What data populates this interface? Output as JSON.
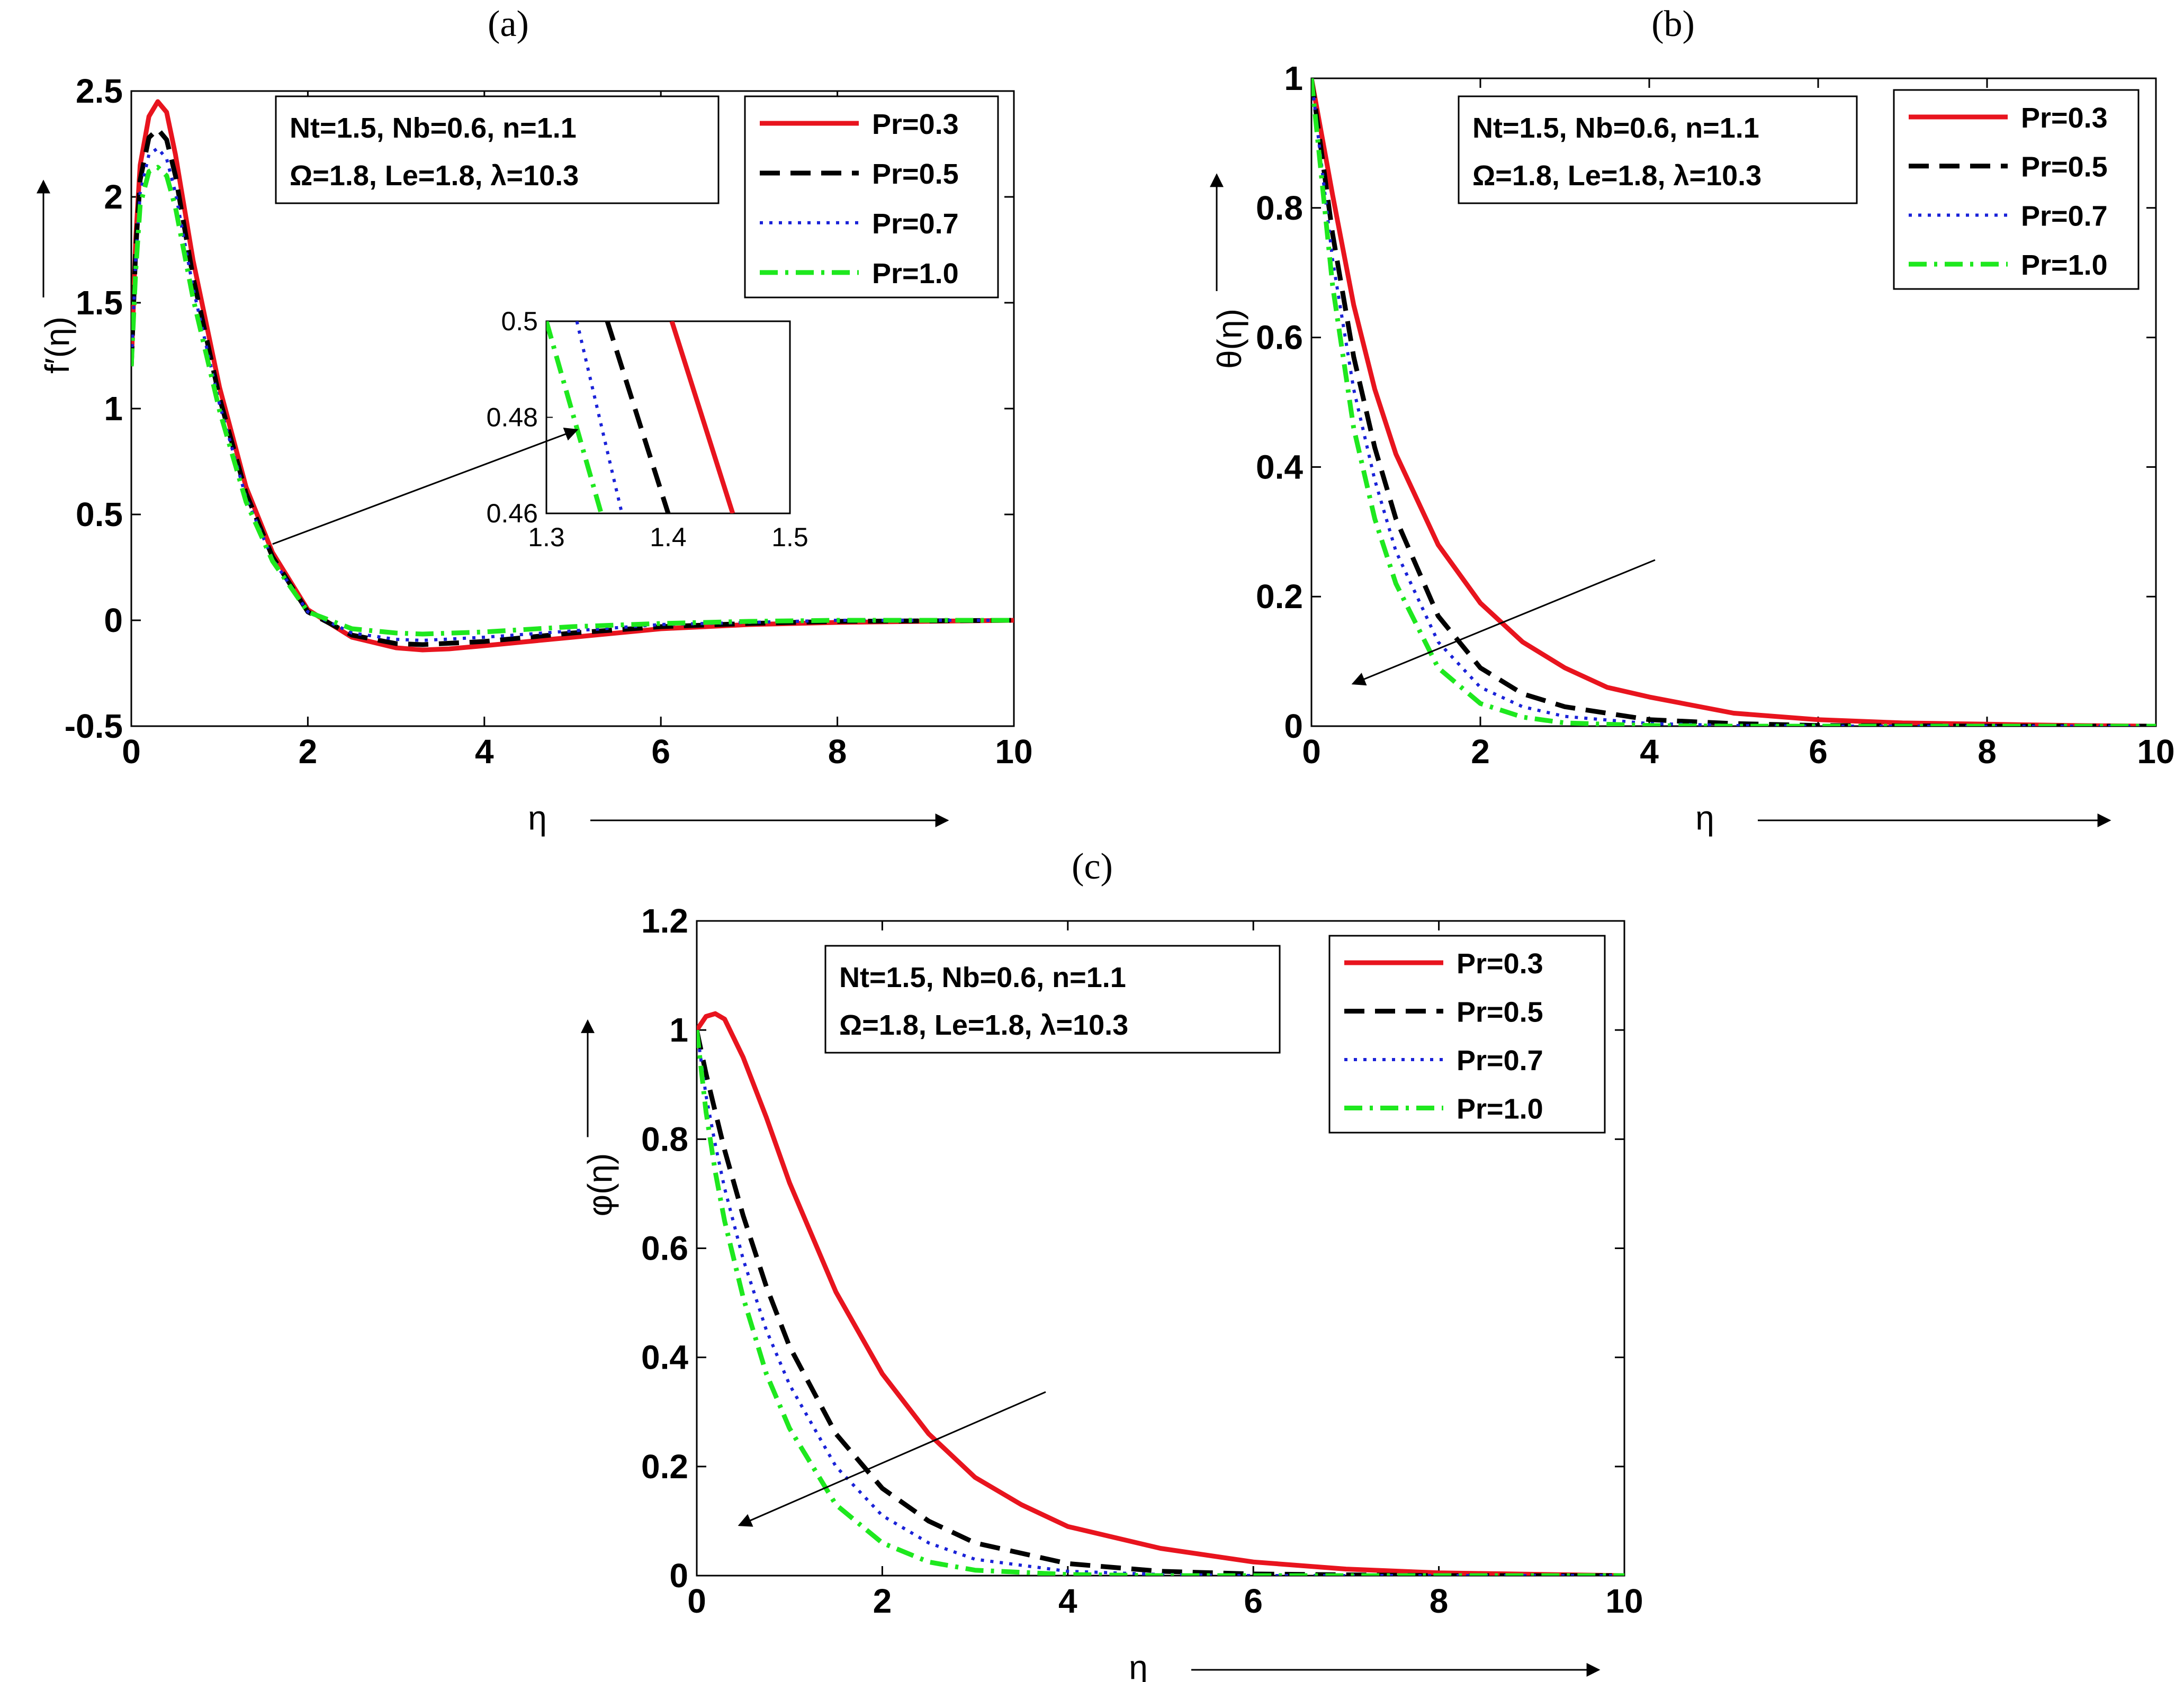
{
  "figure": {
    "panels": [
      {
        "id": "a",
        "label": "(a)",
        "xlabel": "η",
        "ylabel": "f′(η)",
        "annotation": [
          "Nt=1.5, Nb=0.6, n=1.1",
          "Ω=1.8, Le=1.8, λ=10.3"
        ]
      },
      {
        "id": "b",
        "label": "(b)",
        "xlabel": "η",
        "ylabel": "θ(η)",
        "annotation": [
          "Nt=1.5, Nb=0.6, n=1.1",
          "Ω=1.8, Le=1.8, λ=10.3"
        ]
      },
      {
        "id": "c",
        "label": "(c)",
        "xlabel": "η",
        "ylabel": "φ(η)",
        "annotation": [
          "Nt=1.5, Nb=0.6, n=1.1",
          "Ω=1.8, Le=1.8, λ=10.3"
        ]
      }
    ]
  },
  "chart_data": [
    {
      "type": "line",
      "panel": "(a)",
      "title": "(a)",
      "xlabel": "η",
      "ylabel": "f′(η)",
      "xlim": [
        0,
        10
      ],
      "ylim": [
        -0.5,
        2.5
      ],
      "xticks": [
        0,
        2,
        4,
        6,
        8,
        10
      ],
      "yticks": [
        -0.5,
        0,
        0.5,
        1,
        1.5,
        2,
        2.5
      ],
      "ytick_labels": [
        "-0.5",
        "0",
        "0.5",
        "1",
        "1.5",
        "2",
        "2.5"
      ],
      "legend_position": "top-right",
      "legend": [
        "Pr=0.3",
        "Pr=0.5",
        "Pr=0.7",
        "Pr=1.0"
      ],
      "annotation": [
        "Nt=1.5, Nb=0.6, n=1.1",
        "Ω=1.8, Le=1.8, λ=10.3"
      ],
      "series": [
        {
          "name": "Pr=0.3",
          "color": "#e8141e",
          "dash": "solid",
          "x": [
            0,
            0.05,
            0.1,
            0.2,
            0.3,
            0.4,
            0.5,
            0.7,
            1.0,
            1.3,
            1.6,
            2.0,
            2.5,
            3.0,
            3.3,
            3.6,
            4.0,
            5.0,
            6.0,
            7.0,
            8.0,
            10.0
          ],
          "y": [
            1.2,
            1.8,
            2.15,
            2.38,
            2.45,
            2.4,
            2.2,
            1.7,
            1.1,
            0.63,
            0.32,
            0.05,
            -0.08,
            -0.13,
            -0.14,
            -0.135,
            -0.12,
            -0.08,
            -0.04,
            -0.02,
            -0.01,
            0
          ]
        },
        {
          "name": "Pr=0.5",
          "color": "#000000",
          "dash": "dashed",
          "x": [
            0,
            0.05,
            0.1,
            0.2,
            0.3,
            0.4,
            0.5,
            0.7,
            1.0,
            1.3,
            1.6,
            2.0,
            2.5,
            3.0,
            3.3,
            4.0,
            5.0,
            6.0,
            7.0,
            8.0,
            10.0
          ],
          "y": [
            1.2,
            1.75,
            2.08,
            2.28,
            2.32,
            2.27,
            2.1,
            1.62,
            1.05,
            0.6,
            0.3,
            0.04,
            -0.07,
            -0.11,
            -0.115,
            -0.1,
            -0.06,
            -0.03,
            -0.015,
            -0.005,
            0
          ]
        },
        {
          "name": "Pr=0.7",
          "color": "#1a22d8",
          "dash": "dotted",
          "x": [
            0,
            0.05,
            0.1,
            0.2,
            0.3,
            0.4,
            0.5,
            0.7,
            1.0,
            1.3,
            1.6,
            2.0,
            2.5,
            3.0,
            3.3,
            4.0,
            5.0,
            6.0,
            7.0,
            8.0,
            10.0
          ],
          "y": [
            1.2,
            1.7,
            2.02,
            2.2,
            2.23,
            2.18,
            2.02,
            1.57,
            1.02,
            0.58,
            0.29,
            0.04,
            -0.06,
            -0.09,
            -0.095,
            -0.08,
            -0.05,
            -0.02,
            -0.01,
            0,
            0
          ]
        },
        {
          "name": "Pr=1.0",
          "color": "#1ee81e",
          "dash": "dashdot",
          "x": [
            0,
            0.05,
            0.1,
            0.2,
            0.3,
            0.4,
            0.5,
            0.7,
            1.0,
            1.3,
            1.6,
            2.0,
            2.5,
            3.0,
            3.3,
            4.0,
            5.0,
            6.0,
            7.0,
            8.0,
            10.0
          ],
          "y": [
            1.2,
            1.65,
            1.96,
            2.12,
            2.14,
            2.1,
            1.95,
            1.52,
            0.99,
            0.56,
            0.28,
            0.04,
            -0.04,
            -0.06,
            -0.065,
            -0.055,
            -0.03,
            -0.015,
            -0.005,
            0,
            0
          ]
        }
      ],
      "inset": {
        "xlim": [
          1.3,
          1.5
        ],
        "ylim": [
          0.46,
          0.5
        ],
        "xticks": [
          1.3,
          1.4,
          1.5
        ],
        "xtick_labels": [
          "1.3",
          "1.4",
          "1.5"
        ],
        "yticks": [
          0.46,
          0.48,
          0.5
        ],
        "ytick_labels": [
          "0.46",
          "0.48",
          "0.5"
        ],
        "series": [
          {
            "name": "Pr=0.3",
            "x": [
              1.403,
              1.453
            ],
            "y": [
              0.5,
              0.46
            ]
          },
          {
            "name": "Pr=0.5",
            "x": [
              1.35,
              1.4
            ],
            "y": [
              0.5,
              0.46
            ]
          },
          {
            "name": "Pr=0.7",
            "x": [
              1.325,
              1.362
            ],
            "y": [
              0.5,
              0.46
            ]
          },
          {
            "name": "Pr=1.0",
            "x": [
              1.3,
              1.345
            ],
            "y": [
              0.5,
              0.46
            ]
          }
        ]
      }
    },
    {
      "type": "line",
      "panel": "(b)",
      "title": "(b)",
      "xlabel": "η",
      "ylabel": "θ(η)",
      "xlim": [
        0,
        10
      ],
      "ylim": [
        0,
        1
      ],
      "xticks": [
        0,
        2,
        4,
        6,
        8,
        10
      ],
      "yticks": [
        0,
        0.2,
        0.4,
        0.6,
        0.8,
        1
      ],
      "ytick_labels": [
        "0",
        "0.2",
        "0.4",
        "0.6",
        "0.8",
        "1"
      ],
      "legend_position": "top-right",
      "legend": [
        "Pr=0.3",
        "Pr=0.5",
        "Pr=0.7",
        "Pr=1.0"
      ],
      "annotation": [
        "Nt=1.5, Nb=0.6, n=1.1",
        "Ω=1.8, Le=1.8, λ=10.3"
      ],
      "series": [
        {
          "name": "Pr=0.3",
          "color": "#e8141e",
          "dash": "solid",
          "x": [
            0,
            0.25,
            0.5,
            0.75,
            1.0,
            1.5,
            2.0,
            2.5,
            3.0,
            3.5,
            4.0,
            5.0,
            6.0,
            7.0,
            8.0,
            9.0,
            10.0
          ],
          "y": [
            1.0,
            0.82,
            0.65,
            0.52,
            0.42,
            0.28,
            0.19,
            0.13,
            0.09,
            0.06,
            0.045,
            0.02,
            0.01,
            0.005,
            0.003,
            0.001,
            0
          ]
        },
        {
          "name": "Pr=0.5",
          "color": "#000000",
          "dash": "dashed",
          "x": [
            0,
            0.25,
            0.5,
            0.75,
            1.0,
            1.5,
            2.0,
            2.5,
            3.0,
            4.0,
            5.0,
            6.0,
            8.0,
            10.0
          ],
          "y": [
            1.0,
            0.76,
            0.57,
            0.43,
            0.32,
            0.17,
            0.09,
            0.05,
            0.03,
            0.01,
            0.004,
            0.001,
            0,
            0
          ]
        },
        {
          "name": "Pr=0.7",
          "color": "#1a22d8",
          "dash": "dotted",
          "x": [
            0,
            0.25,
            0.5,
            0.75,
            1.0,
            1.5,
            2.0,
            2.5,
            3.0,
            4.0,
            5.0,
            6.0,
            8.0,
            10.0
          ],
          "y": [
            1.0,
            0.72,
            0.52,
            0.38,
            0.27,
            0.13,
            0.06,
            0.03,
            0.015,
            0.004,
            0.001,
            0,
            0,
            0
          ]
        },
        {
          "name": "Pr=1.0",
          "color": "#1ee81e",
          "dash": "dashdot",
          "x": [
            0,
            0.25,
            0.5,
            0.75,
            1.0,
            1.5,
            2.0,
            2.5,
            3.0,
            4.0,
            5.0,
            6.0,
            8.0,
            10.0
          ],
          "y": [
            1.0,
            0.68,
            0.46,
            0.32,
            0.22,
            0.09,
            0.035,
            0.014,
            0.005,
            0.001,
            0,
            0,
            0,
            0
          ]
        }
      ]
    },
    {
      "type": "line",
      "panel": "(c)",
      "title": "(c)",
      "xlabel": "η",
      "ylabel": "φ(η)",
      "xlim": [
        0,
        10
      ],
      "ylim": [
        0,
        1.2
      ],
      "xticks": [
        0,
        2,
        4,
        6,
        8,
        10
      ],
      "yticks": [
        0,
        0.2,
        0.4,
        0.6,
        0.8,
        1,
        1.2
      ],
      "ytick_labels": [
        "0",
        "0.2",
        "0.4",
        "0.6",
        "0.8",
        "1",
        "1.2"
      ],
      "legend_position": "top-right",
      "legend": [
        "Pr=0.3",
        "Pr=0.5",
        "Pr=0.7",
        "Pr=1.0"
      ],
      "annotation": [
        "Nt=1.5, Nb=0.6, n=1.1",
        "Ω=1.8, Le=1.8, λ=10.3"
      ],
      "series": [
        {
          "name": "Pr=0.3",
          "color": "#e8141e",
          "dash": "solid",
          "x": [
            0,
            0.1,
            0.2,
            0.3,
            0.5,
            0.75,
            1.0,
            1.5,
            2.0,
            2.5,
            3.0,
            3.5,
            4.0,
            5.0,
            6.0,
            7.0,
            8.0,
            10.0
          ],
          "y": [
            1.0,
            1.025,
            1.03,
            1.02,
            0.95,
            0.84,
            0.72,
            0.52,
            0.37,
            0.26,
            0.18,
            0.13,
            0.09,
            0.05,
            0.025,
            0.012,
            0.005,
            0
          ]
        },
        {
          "name": "Pr=0.5",
          "color": "#000000",
          "dash": "dashed",
          "x": [
            0,
            0.1,
            0.2,
            0.3,
            0.5,
            0.75,
            1.0,
            1.5,
            2.0,
            2.5,
            3.0,
            4.0,
            5.0,
            6.0,
            8.0,
            10.0
          ],
          "y": [
            1.0,
            0.92,
            0.85,
            0.78,
            0.66,
            0.53,
            0.42,
            0.26,
            0.16,
            0.1,
            0.06,
            0.022,
            0.008,
            0.003,
            0,
            0
          ]
        },
        {
          "name": "Pr=0.7",
          "color": "#1a22d8",
          "dash": "dotted",
          "x": [
            0,
            0.1,
            0.2,
            0.3,
            0.5,
            0.75,
            1.0,
            1.5,
            2.0,
            2.5,
            3.0,
            4.0,
            5.0,
            6.0,
            8.0,
            10.0
          ],
          "y": [
            1.0,
            0.88,
            0.79,
            0.71,
            0.58,
            0.45,
            0.35,
            0.2,
            0.11,
            0.06,
            0.03,
            0.008,
            0.002,
            0,
            0,
            0
          ]
        },
        {
          "name": "Pr=1.0",
          "color": "#1ee81e",
          "dash": "dashdot",
          "x": [
            0,
            0.1,
            0.2,
            0.3,
            0.5,
            0.75,
            1.0,
            1.5,
            2.0,
            2.5,
            3.0,
            4.0,
            5.0,
            6.0,
            8.0,
            10.0
          ],
          "y": [
            1.0,
            0.85,
            0.74,
            0.65,
            0.51,
            0.37,
            0.27,
            0.13,
            0.06,
            0.025,
            0.01,
            0.002,
            0,
            0,
            0,
            0
          ]
        }
      ]
    }
  ]
}
